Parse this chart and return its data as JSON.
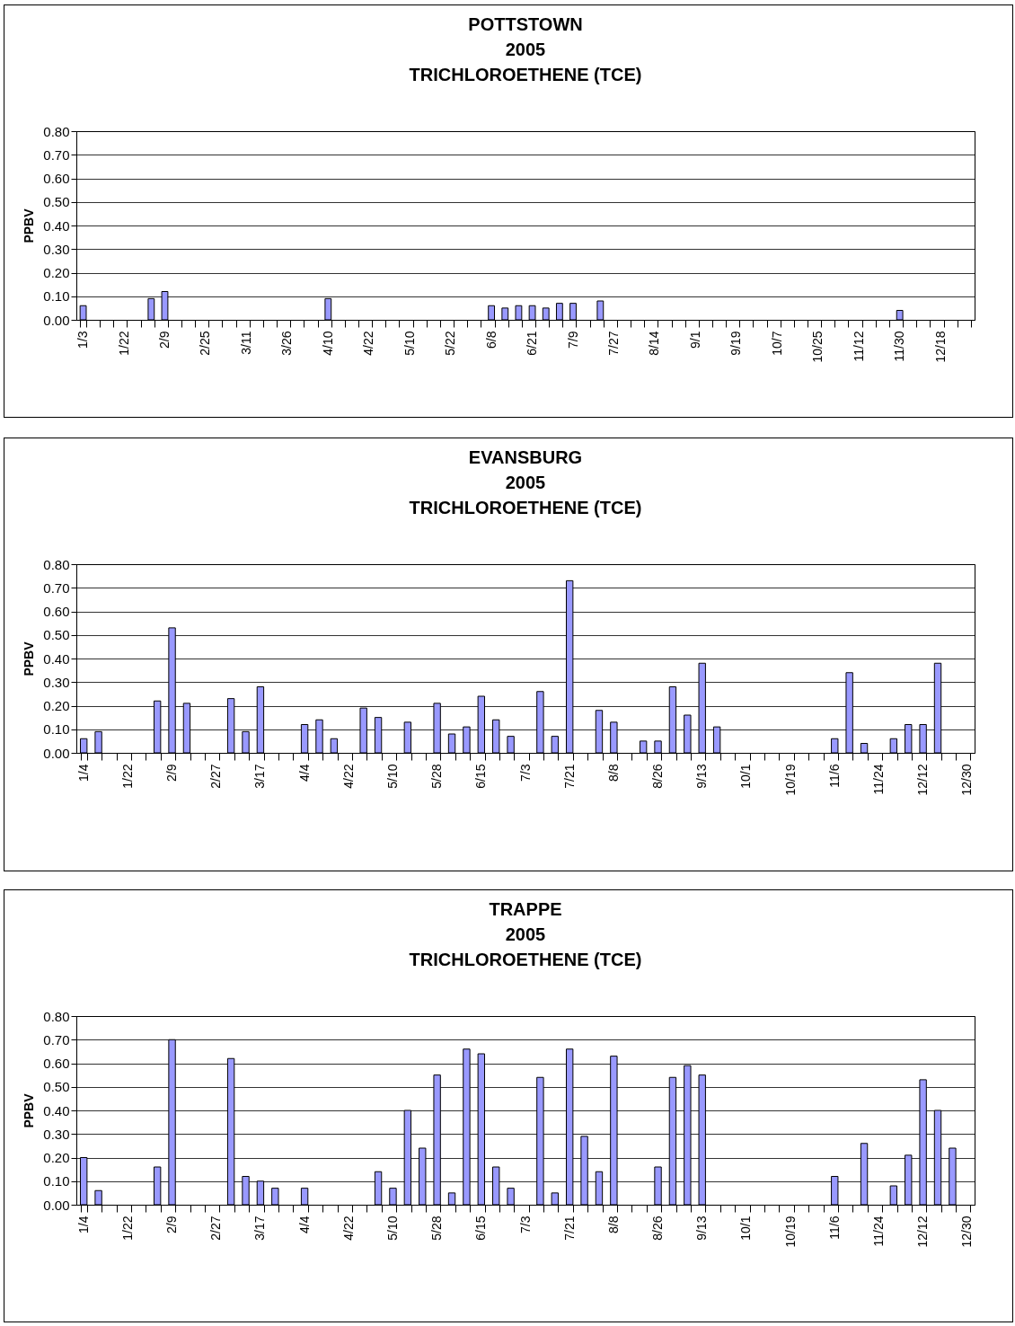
{
  "chart_data": [
    {
      "type": "bar",
      "title": "POTTSTOWN\n2005\nTRICHLOROETHENE (TCE)",
      "ylabel": "PPBV",
      "color": "#9999ff",
      "grid": "y",
      "ylim": [
        0,
        0.8
      ],
      "yticks": [
        {
          "value": 0,
          "label": "0.00"
        },
        {
          "value": 0.1,
          "label": "0.10"
        },
        {
          "value": 0.2,
          "label": "0.20"
        },
        {
          "value": 0.3,
          "label": "0.30"
        },
        {
          "value": 0.4,
          "label": "0.40"
        },
        {
          "value": 0.5,
          "label": "0.50"
        },
        {
          "value": 0.6,
          "label": "0.60"
        },
        {
          "value": 0.7,
          "label": "0.70"
        },
        {
          "value": 0.8,
          "label": "0.80"
        }
      ],
      "categories": [
        "1/3",
        null,
        null,
        "1/22",
        null,
        null,
        "2/9",
        null,
        null,
        "2/25",
        null,
        null,
        "3/11",
        null,
        null,
        "3/26",
        null,
        null,
        "4/10",
        null,
        null,
        "4/22",
        null,
        null,
        "5/10",
        null,
        null,
        "5/22",
        null,
        null,
        "6/8",
        null,
        null,
        "6/21",
        null,
        null,
        "7/9",
        null,
        null,
        "7/27",
        null,
        null,
        "8/14",
        null,
        null,
        "9/1",
        null,
        null,
        "9/19",
        null,
        null,
        "10/7",
        null,
        null,
        "10/25",
        null,
        null,
        "11/12",
        null,
        null,
        "11/30",
        null,
        null,
        "12/18",
        null,
        null
      ],
      "values": [
        0.06,
        null,
        null,
        null,
        null,
        0.09,
        0.12,
        null,
        null,
        null,
        null,
        null,
        null,
        null,
        null,
        null,
        null,
        null,
        0.09,
        null,
        null,
        null,
        null,
        null,
        null,
        null,
        null,
        null,
        null,
        null,
        0.06,
        0.05,
        0.06,
        0.06,
        0.05,
        0.07,
        0.07,
        null,
        0.08,
        null,
        null,
        null,
        null,
        null,
        null,
        null,
        null,
        null,
        null,
        null,
        null,
        null,
        null,
        null,
        null,
        null,
        null,
        null,
        null,
        null,
        0.04,
        null,
        null,
        null,
        null,
        null
      ]
    },
    {
      "type": "bar",
      "title": "EVANSBURG\n2005\nTRICHLOROETHENE (TCE)",
      "ylabel": "PPBV",
      "color": "#9999ff",
      "grid": "y",
      "ylim": [
        0,
        0.8
      ],
      "yticks": [
        {
          "value": 0,
          "label": "0.00"
        },
        {
          "value": 0.1,
          "label": "0.10"
        },
        {
          "value": 0.2,
          "label": "0.20"
        },
        {
          "value": 0.3,
          "label": "0.30"
        },
        {
          "value": 0.4,
          "label": "0.40"
        },
        {
          "value": 0.5,
          "label": "0.50"
        },
        {
          "value": 0.6,
          "label": "0.60"
        },
        {
          "value": 0.7,
          "label": "0.70"
        },
        {
          "value": 0.8,
          "label": "0.80"
        }
      ],
      "categories": [
        "1/4",
        null,
        null,
        "1/22",
        null,
        null,
        "2/9",
        null,
        null,
        "2/27",
        null,
        null,
        "3/17",
        null,
        null,
        "4/4",
        null,
        null,
        "4/22",
        null,
        null,
        "5/10",
        null,
        null,
        "5/28",
        null,
        null,
        "6/15",
        null,
        null,
        "7/3",
        null,
        null,
        "7/21",
        null,
        null,
        "8/8",
        null,
        null,
        "8/26",
        null,
        null,
        "9/13",
        null,
        null,
        "10/1",
        null,
        null,
        "10/19",
        null,
        null,
        "11/6",
        null,
        null,
        "11/24",
        null,
        null,
        "12/12",
        null,
        null,
        "12/30"
      ],
      "values": [
        0.06,
        0.09,
        null,
        null,
        null,
        0.22,
        0.53,
        0.21,
        null,
        null,
        0.23,
        0.09,
        0.28,
        null,
        null,
        0.12,
        0.14,
        0.06,
        null,
        0.19,
        0.15,
        null,
        0.13,
        null,
        0.21,
        0.08,
        0.11,
        0.24,
        0.14,
        0.07,
        null,
        0.26,
        0.07,
        0.73,
        null,
        0.18,
        0.13,
        null,
        0.05,
        0.05,
        0.28,
        0.16,
        0.38,
        0.11,
        null,
        null,
        null,
        null,
        null,
        null,
        null,
        0.06,
        0.34,
        0.04,
        null,
        0.06,
        0.12,
        0.12,
        0.38,
        null,
        null
      ]
    },
    {
      "type": "bar",
      "title": "TRAPPE\n2005\nTRICHLOROETHENE (TCE)",
      "ylabel": "PPBV",
      "color": "#9999ff",
      "grid": "y",
      "ylim": [
        0,
        0.8
      ],
      "yticks": [
        {
          "value": 0,
          "label": "0.00"
        },
        {
          "value": 0.1,
          "label": "0.10"
        },
        {
          "value": 0.2,
          "label": "0.20"
        },
        {
          "value": 0.3,
          "label": "0.30"
        },
        {
          "value": 0.4,
          "label": "0.40"
        },
        {
          "value": 0.5,
          "label": "0.50"
        },
        {
          "value": 0.6,
          "label": "0.60"
        },
        {
          "value": 0.7,
          "label": "0.70"
        },
        {
          "value": 0.8,
          "label": "0.80"
        }
      ],
      "categories": [
        "1/4",
        null,
        null,
        "1/22",
        null,
        null,
        "2/9",
        null,
        null,
        "2/27",
        null,
        null,
        "3/17",
        null,
        null,
        "4/4",
        null,
        null,
        "4/22",
        null,
        null,
        "5/10",
        null,
        null,
        "5/28",
        null,
        null,
        "6/15",
        null,
        null,
        "7/3",
        null,
        null,
        "7/21",
        null,
        null,
        "8/8",
        null,
        null,
        "8/26",
        null,
        null,
        "9/13",
        null,
        null,
        "10/1",
        null,
        null,
        "10/19",
        null,
        null,
        "11/6",
        null,
        null,
        "11/24",
        null,
        null,
        "12/12",
        null,
        null,
        "12/30"
      ],
      "values": [
        0.2,
        0.06,
        null,
        null,
        null,
        0.16,
        0.7,
        null,
        null,
        null,
        0.62,
        0.12,
        0.1,
        0.07,
        null,
        0.07,
        null,
        null,
        null,
        null,
        0.14,
        0.07,
        0.4,
        0.24,
        0.55,
        0.05,
        0.66,
        0.64,
        0.16,
        0.07,
        null,
        0.54,
        0.05,
        0.66,
        0.29,
        0.14,
        0.63,
        null,
        null,
        0.16,
        0.54,
        0.59,
        0.55,
        null,
        null,
        null,
        null,
        null,
        null,
        null,
        null,
        0.12,
        null,
        0.26,
        null,
        0.08,
        0.21,
        0.53,
        0.4,
        0.24,
        null
      ]
    }
  ]
}
